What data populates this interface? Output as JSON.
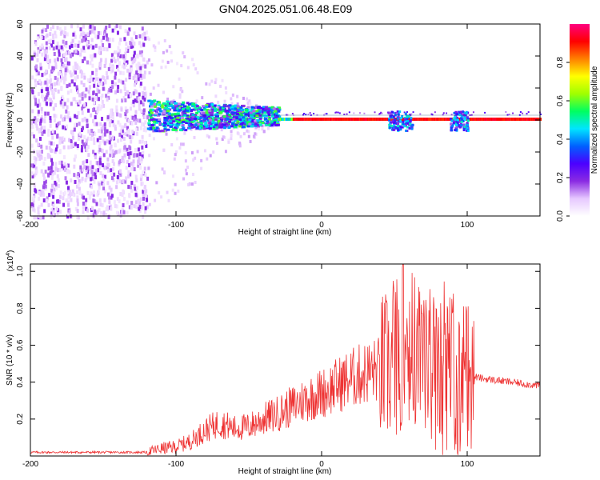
{
  "title": "GN04.2025.051.06.48.E09",
  "chart_data": [
    {
      "type": "heatmap",
      "title": "GN04.2025.051.06.48.E09",
      "xlabel": "Height of straight line (km)",
      "ylabel": "Frequency (Hz)",
      "xlim": [
        -200,
        150
      ],
      "ylim": [
        -60,
        60
      ],
      "x_ticks": [
        -200,
        -100,
        0,
        100
      ],
      "y_ticks": [
        -60,
        -40,
        -20,
        0,
        20,
        40,
        60
      ],
      "colorbar": {
        "label": "Normalized spectral amplitude",
        "range": [
          0,
          1
        ],
        "ticks": [
          0.0,
          0.2,
          0.4,
          0.6,
          0.8
        ],
        "colormap": [
          "#ffffff",
          "#e6c8ff",
          "#8a2be2",
          "#4b00ff",
          "#0060ff",
          "#00e5ff",
          "#00ff60",
          "#a0ff00",
          "#ffff00",
          "#ff8000",
          "#ff0000",
          "#ff0080"
        ]
      },
      "features": [
        {
          "x_range": [
            -200,
            -120
          ],
          "description_values": {
            "amplitude_range": [
              0.1,
              0.3
            ],
            "freq_range": [
              -60,
              60
            ]
          }
        },
        {
          "x_range": [
            -120,
            -30
          ],
          "freq_center": 3,
          "freq_halfwidth": 10,
          "peak_amplitude": 0.55
        },
        {
          "x_range": [
            -30,
            150
          ],
          "freq_center": 0,
          "peak_amplitude": 0.95
        }
      ]
    },
    {
      "type": "line",
      "xlabel": "Height of straight line (km)",
      "ylabel": "SNR (10 * v/v)",
      "y_multiplier": "(x10^4)",
      "xlim": [
        -200,
        150
      ],
      "ylim": [
        0,
        1.04
      ],
      "x_ticks": [
        -200,
        -100,
        0,
        100
      ],
      "y_ticks": [
        0.2,
        0.4,
        0.6,
        0.8,
        1.0
      ],
      "color": "#ee3333",
      "series": [
        {
          "x": [
            -200,
            -180,
            -160,
            -140,
            -120,
            -110,
            -100,
            -90,
            -80,
            -70,
            -60,
            -50,
            -40,
            -30,
            -20,
            -10,
            0,
            10,
            20,
            30,
            40,
            48,
            52,
            55,
            58,
            60,
            62,
            65,
            70,
            75,
            80,
            85,
            90,
            95,
            100,
            105,
            110,
            120,
            130,
            140,
            150
          ],
          "y": [
            0.02,
            0.02,
            0.02,
            0.02,
            0.02,
            0.04,
            0.05,
            0.08,
            0.14,
            0.18,
            0.15,
            0.16,
            0.2,
            0.23,
            0.27,
            0.31,
            0.34,
            0.38,
            0.42,
            0.45,
            0.47,
            0.48,
            0.55,
            0.6,
            0.62,
            0.65,
            0.6,
            0.55,
            0.5,
            0.5,
            0.42,
            0.45,
            0.44,
            0.42,
            0.45,
            0.43,
            0.42,
            0.41,
            0.4,
            0.39,
            0.38
          ]
        }
      ]
    }
  ]
}
